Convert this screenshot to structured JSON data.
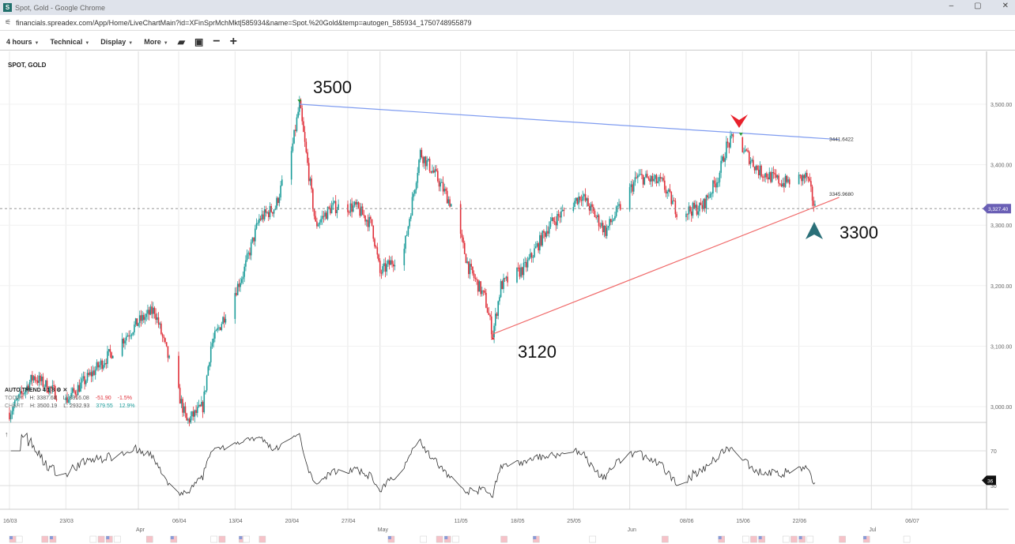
{
  "window": {
    "title": "Spot, Gold - Google Chrome",
    "favicon": "S",
    "controls": [
      "–",
      "▢",
      "✕"
    ]
  },
  "address": {
    "url": "financials.spreadex.com/App/Home/LiveChartMain?id=XFinSprMchMkt|585934&name=Spot.%20Gold&temp=autogen_585934_1750748955879"
  },
  "toolbar": {
    "interval": "4 hours",
    "technical": "Technical",
    "display": "Display",
    "more": "More",
    "icons": [
      "folder-open-icon",
      "save-icon",
      "zoom-out-icon",
      "zoom-in-icon"
    ]
  },
  "symbol": "SPOT, GOLD",
  "legend": {
    "indicator": "AUTO TREND 4 1 8",
    "today": {
      "label": "TODAY",
      "high": "H: 3387.68",
      "low": "L: 3316.08",
      "change": "-51.90",
      "pct": "-1.5%"
    },
    "chart": {
      "label": "CHART",
      "high": "H: 3500.19",
      "low": "L: 2932.93",
      "change": "379.55",
      "pct": "12.9%"
    }
  },
  "annotations": {
    "peak": "3500",
    "low": "3120",
    "support": "3300"
  },
  "trendlines": {
    "upper_label": "3441.6422",
    "lower_label": "3345.9680"
  },
  "current_price": "3,327.40",
  "rsi_current": "36",
  "colors": {
    "up": "#1b9c9a",
    "down": "#e0303a",
    "upper_trend": "#7f9cf0",
    "lower_trend": "#f06a6a",
    "price_tag": "#6a5fb5",
    "arrow_down": "#e8212b",
    "arrow_up": "#2a6f78"
  },
  "chart_data": {
    "type": "candlestick",
    "interval": "4 hours",
    "y_ticks": [
      "3,500.00",
      "3,400.00",
      "3,300.00",
      "3,200.00",
      "3,100.00",
      "3,000.00"
    ],
    "ylim": [
      2960,
      3540
    ],
    "x_ticks": [
      {
        "date": "2025-03-16",
        "label": "16/03"
      },
      {
        "date": "2025-03-23",
        "label": "23/03"
      },
      {
        "date": "2025-04-01",
        "label": "Apr",
        "month": true
      },
      {
        "date": "2025-04-06",
        "label": "06/04"
      },
      {
        "date": "2025-04-13",
        "label": "13/04"
      },
      {
        "date": "2025-04-20",
        "label": "20/04"
      },
      {
        "date": "2025-04-27",
        "label": "27/04"
      },
      {
        "date": "2025-05-01",
        "label": "May",
        "month": true
      },
      {
        "date": "2025-05-11",
        "label": "11/05"
      },
      {
        "date": "2025-05-18",
        "label": "18/05"
      },
      {
        "date": "2025-05-25",
        "label": "25/05"
      },
      {
        "date": "2025-06-01",
        "label": "Jun",
        "month": true
      },
      {
        "date": "2025-06-08",
        "label": "08/06"
      },
      {
        "date": "2025-06-15",
        "label": "15/06"
      },
      {
        "date": "2025-06-22",
        "label": "22/06"
      },
      {
        "date": "2025-07-01",
        "label": "Jul",
        "month": true
      },
      {
        "date": "2025-07-06",
        "label": "06/07"
      }
    ],
    "approx_closes": [
      [
        "2025-03-16",
        2990
      ],
      [
        "2025-03-19",
        3050
      ],
      [
        "2025-03-23",
        3010
      ],
      [
        "2025-03-28",
        3080
      ],
      [
        "2025-04-01",
        3140
      ],
      [
        "2025-04-03",
        3160
      ],
      [
        "2025-04-07",
        2975
      ],
      [
        "2025-04-09",
        3000
      ],
      [
        "2025-04-10",
        3100
      ],
      [
        "2025-04-14",
        3220
      ],
      [
        "2025-04-16",
        3310
      ],
      [
        "2025-04-18",
        3330
      ],
      [
        "2025-04-20",
        3420
      ],
      [
        "2025-04-21",
        3500
      ],
      [
        "2025-04-23",
        3300
      ],
      [
        "2025-04-25",
        3330
      ],
      [
        "2025-04-28",
        3330
      ],
      [
        "2025-04-30",
        3300
      ],
      [
        "2025-05-01",
        3220
      ],
      [
        "2025-05-04",
        3260
      ],
      [
        "2025-05-06",
        3420
      ],
      [
        "2025-05-08",
        3380
      ],
      [
        "2025-05-10",
        3330
      ],
      [
        "2025-05-12",
        3230
      ],
      [
        "2025-05-14",
        3180
      ],
      [
        "2025-05-15",
        3120
      ],
      [
        "2025-05-16",
        3200
      ],
      [
        "2025-05-19",
        3230
      ],
      [
        "2025-05-22",
        3300
      ],
      [
        "2025-05-26",
        3350
      ],
      [
        "2025-05-29",
        3290
      ],
      [
        "2025-06-02",
        3380
      ],
      [
        "2025-06-05",
        3370
      ],
      [
        "2025-06-07",
        3320
      ],
      [
        "2025-06-10",
        3330
      ],
      [
        "2025-06-12",
        3380
      ],
      [
        "2025-06-13",
        3430
      ],
      [
        "2025-06-14",
        3445
      ],
      [
        "2025-06-17",
        3390
      ],
      [
        "2025-06-20",
        3370
      ],
      [
        "2025-06-23",
        3380
      ],
      [
        "2025-06-24",
        3327.4
      ]
    ],
    "trendline_upper": [
      [
        "2025-04-21",
        3500
      ],
      [
        "2025-06-27",
        3441.6422
      ]
    ],
    "trendline_lower": [
      [
        "2025-05-15",
        3120
      ],
      [
        "2025-06-27",
        3345.968
      ]
    ],
    "rsi": {
      "levels": [
        "70",
        "30"
      ],
      "current": 36
    }
  }
}
